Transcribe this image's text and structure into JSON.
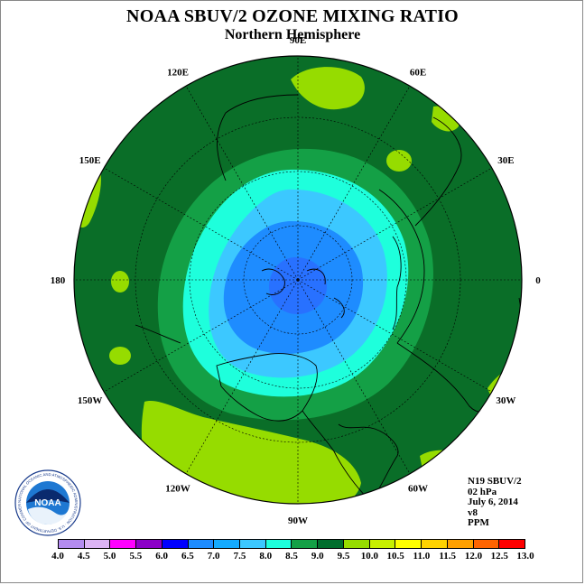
{
  "title": "NOAA SBUV/2 OZONE MIXING RATIO",
  "subtitle": "Northern Hemisphere",
  "longitude_labels": [
    {
      "text": "90E",
      "angle": 90
    },
    {
      "text": "60E",
      "angle": 60
    },
    {
      "text": "30E",
      "angle": 30
    },
    {
      "text": "0",
      "angle": 0
    },
    {
      "text": "30W",
      "angle": -30
    },
    {
      "text": "60W",
      "angle": -60
    },
    {
      "text": "90W",
      "angle": -90
    },
    {
      "text": "120W",
      "angle": -120
    },
    {
      "text": "150W",
      "angle": -150
    },
    {
      "text": "180",
      "angle": 180
    },
    {
      "text": "150E",
      "angle": 150
    },
    {
      "text": "120E",
      "angle": 120
    }
  ],
  "info": {
    "satellite": "N19 SBUV/2",
    "level": "02 hPa",
    "date": "July 6, 2014",
    "version": "v8",
    "units": "PPM"
  },
  "logo_text": "NOAA",
  "logo_ring_text": "NATIONAL OCEANIC AND ATMOSPHERIC ADMINISTRATION · U.S. DEPARTMENT OF COMMERCE",
  "colorbar": {
    "ticks": [
      "4.0",
      "4.5",
      "5.0",
      "5.5",
      "6.0",
      "6.5",
      "7.0",
      "7.5",
      "8.0",
      "8.5",
      "9.0",
      "9.5",
      "10.0",
      "10.5",
      "11.0",
      "11.5",
      "12.0",
      "12.5",
      "13.0"
    ],
    "colors": [
      "#b48cf0",
      "#dcb4f5",
      "#ff00ff",
      "#8c00c8",
      "#0000ff",
      "#1e8cff",
      "#14aaff",
      "#3cc8ff",
      "#1effdc",
      "#14a046",
      "#006e2d",
      "#96dc00",
      "#c8f000",
      "#ffff00",
      "#ffd200",
      "#ffa000",
      "#ff6400",
      "#ff0000",
      "#8c5a32"
    ]
  },
  "map_colors": {
    "background_level": "#0a6e28",
    "ring_8_5": "#14a046",
    "ring_8_0": "#1effdc",
    "ring_7_0": "#3cc8ff",
    "ring_6_5": "#1e8cff",
    "pole_6_0": "#2a6cff",
    "low_patch": "#96dc00"
  }
}
